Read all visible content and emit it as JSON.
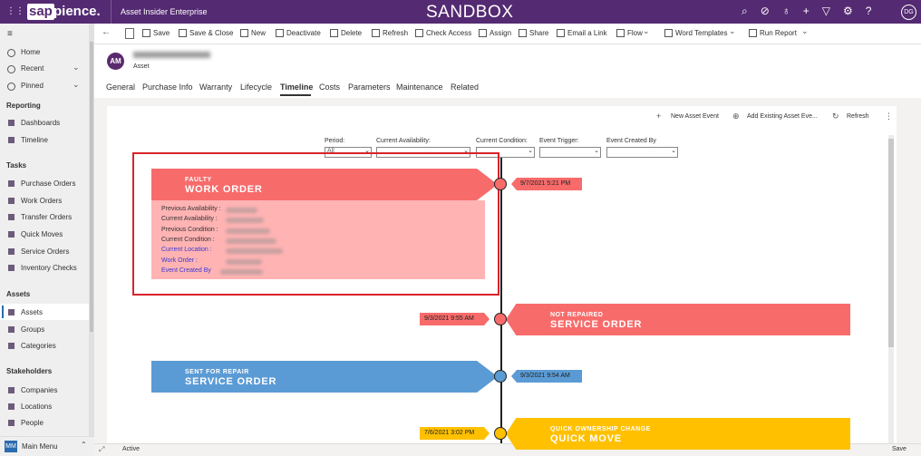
{
  "topbar": {
    "logo_box": "sap",
    "logo_rest": "pience.",
    "app": "Asset Insider Enterprise",
    "environment": "SANDBOX",
    "user": "DG"
  },
  "sidebar": {
    "top": [
      "Home",
      "Recent",
      "Pinned"
    ],
    "sections": [
      {
        "title": "Reporting",
        "items": [
          "Dashboards",
          "Timeline"
        ]
      },
      {
        "title": "Tasks",
        "items": [
          "Purchase Orders",
          "Work Orders",
          "Transfer Orders",
          "Quick Moves",
          "Service Orders",
          "Inventory Checks"
        ]
      },
      {
        "title": "Assets",
        "items": [
          "Assets",
          "Groups",
          "Categories"
        ]
      },
      {
        "title": "Stakeholders",
        "items": [
          "Companies",
          "Locations",
          "People"
        ]
      }
    ],
    "active": "Assets",
    "footer_badge": "MM",
    "footer_label": "Main Menu"
  },
  "commands": [
    "Save",
    "Save & Close",
    "New",
    "Deactivate",
    "Delete",
    "Refresh",
    "Check Access",
    "Assign",
    "Share",
    "Email a Link",
    "Flow",
    "Word Templates",
    "Run Report"
  ],
  "record": {
    "avatar": "AM",
    "entity": "Asset",
    "tabs": [
      "General",
      "Purchase Info",
      "Warranty",
      "Lifecycle",
      "Timeline",
      "Costs",
      "Parameters",
      "Maintenance",
      "Related"
    ],
    "active_tab": "Timeline"
  },
  "timeline": {
    "actions": [
      "New Asset Event",
      "Add Existing Asset Eve...",
      "Refresh"
    ],
    "filters": [
      {
        "label": "Period:",
        "value": "All"
      },
      {
        "label": "Current Availability:"
      },
      {
        "label": "Current Condition:"
      },
      {
        "label": "Event Trigger:"
      },
      {
        "label": "Event Created By"
      }
    ],
    "events": [
      {
        "status": "FAULTY",
        "type": "WORK ORDER",
        "datetime": "9/7/2021 5:21 PM",
        "side": "left",
        "color": "#f86b6b",
        "fields": [
          "Previous Availability :",
          "Current Availability :",
          "Previous Condition :",
          "Current Condition :",
          "Current Location :",
          "Work Order :",
          "Event Created By"
        ]
      },
      {
        "status": "NOT REPAIRED",
        "type": "SERVICE ORDER",
        "datetime": "9/3/2021 9:55 AM",
        "side": "right",
        "color": "#f86b6b"
      },
      {
        "status": "SENT FOR REPAIR",
        "type": "SERVICE ORDER",
        "datetime": "9/3/2021 9:54 AM",
        "side": "left",
        "color": "#5b9bd5"
      },
      {
        "status": "QUICK OWNERSHIP CHANGE",
        "type": "QUICK MOVE",
        "datetime": "7/6/2021 3:02 PM",
        "side": "right",
        "color": "#ffc000"
      }
    ]
  },
  "statusbar": {
    "state": "Active",
    "save": "Save"
  }
}
